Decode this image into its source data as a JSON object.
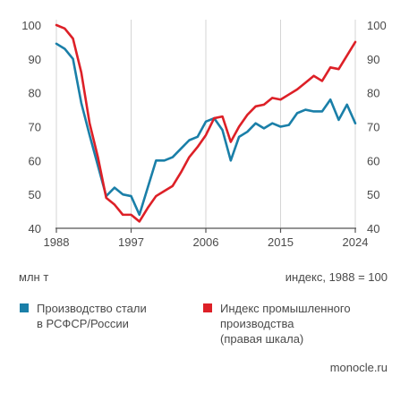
{
  "chart_data": {
    "type": "line",
    "title": "",
    "xlabel": "",
    "ylabel_left": "млн т",
    "ylabel_right": "индекс, 1988 = 100",
    "x_ticks": [
      1988,
      1997,
      2006,
      2015,
      2024
    ],
    "xlim": [
      1988,
      2024
    ],
    "ylim_left": [
      40,
      100
    ],
    "ylim_right": [
      40,
      100
    ],
    "y_ticks_left": [
      40,
      50,
      60,
      70,
      80,
      90,
      100
    ],
    "y_ticks_right": [
      40,
      50,
      60,
      70,
      80,
      90,
      100
    ],
    "grid": "vertical lines at x ticks",
    "x": [
      1988,
      1989,
      1990,
      1991,
      1992,
      1993,
      1994,
      1995,
      1996,
      1997,
      1998,
      1999,
      2000,
      2001,
      2002,
      2003,
      2004,
      2005,
      2006,
      2007,
      2008,
      2009,
      2010,
      2011,
      2012,
      2013,
      2014,
      2015,
      2016,
      2017,
      2018,
      2019,
      2020,
      2021,
      2022,
      2023,
      2024
    ],
    "series": [
      {
        "name": "Производство стали в РСФСР/России",
        "axis": "left",
        "color": "#1a7fa8",
        "values": [
          94.5,
          93,
          90,
          77,
          67.5,
          58.5,
          49.5,
          52,
          50,
          49.5,
          44,
          52,
          60,
          60,
          61,
          63.5,
          66,
          67,
          71.5,
          72.5,
          69,
          60,
          67,
          68.5,
          71,
          69.5,
          71,
          70,
          70.5,
          74,
          75,
          74.5,
          74.5,
          78,
          72,
          76.5,
          71
        ]
      },
      {
        "name": "Индекс промышленного производства (правая шкала)",
        "axis": "right",
        "color": "#dd2027",
        "values": [
          100,
          99,
          96,
          86,
          71,
          61,
          49,
          47,
          44,
          44,
          42,
          46,
          49.5,
          51,
          52.5,
          56.5,
          61,
          64,
          67.5,
          72.5,
          73,
          65.5,
          70,
          73.5,
          76,
          76.5,
          78.5,
          78,
          79.5,
          81,
          83,
          85,
          83.5,
          87.5,
          87,
          91,
          95
        ]
      }
    ],
    "legend": [
      {
        "lines": [
          "Производство стали",
          "в РСФСР/России"
        ],
        "color": "#1a7fa8"
      },
      {
        "lines": [
          "Индекс промышленного",
          "производства",
          "(правая шкала)"
        ],
        "color": "#dd2027"
      }
    ],
    "legend_position": "bottom"
  },
  "source": "monocle.ru",
  "colors": {
    "grid": "#d5d5d5",
    "axis": "#555555",
    "text": "#4a4a4a"
  }
}
